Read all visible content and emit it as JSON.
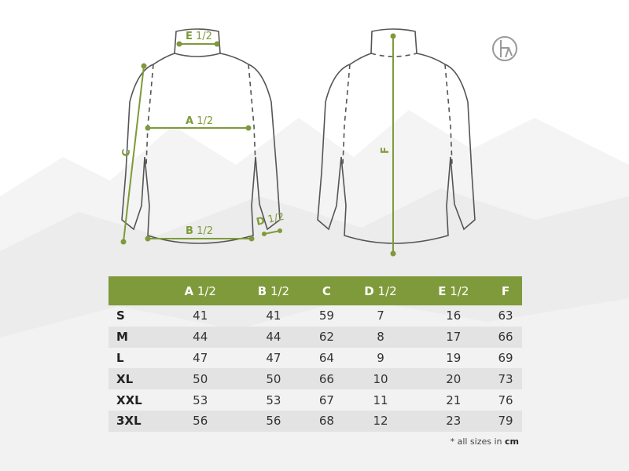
{
  "accent_color": "#7e9a3a",
  "diagram": {
    "front_labels": {
      "a": "A",
      "a_suffix": "1/2",
      "b": "B",
      "b_suffix": "1/2",
      "c": "C",
      "d": "D",
      "d_suffix": "1/2",
      "e": "E",
      "e_suffix": "1/2"
    },
    "back_labels": {
      "f": "F"
    }
  },
  "logo": {
    "icon": "brand-logo-icon"
  },
  "table": {
    "headers": [
      {
        "letter": "",
        "suffix": ""
      },
      {
        "letter": "A",
        "suffix": "1/2"
      },
      {
        "letter": "B",
        "suffix": "1/2"
      },
      {
        "letter": "C",
        "suffix": ""
      },
      {
        "letter": "D",
        "suffix": "1/2"
      },
      {
        "letter": "E",
        "suffix": "1/2"
      },
      {
        "letter": "F",
        "suffix": ""
      }
    ],
    "rows": [
      [
        "S",
        "41",
        "41",
        "59",
        "7",
        "16",
        "63"
      ],
      [
        "M",
        "44",
        "44",
        "62",
        "8",
        "17",
        "66"
      ],
      [
        "L",
        "47",
        "47",
        "64",
        "9",
        "19",
        "69"
      ],
      [
        "XL",
        "50",
        "50",
        "66",
        "10",
        "20",
        "73"
      ],
      [
        "XXL",
        "53",
        "53",
        "67",
        "11",
        "21",
        "76"
      ],
      [
        "3XL",
        "56",
        "56",
        "68",
        "12",
        "23",
        "79"
      ]
    ]
  },
  "note": {
    "prefix": "* all sizes in",
    "unit": "cm"
  }
}
